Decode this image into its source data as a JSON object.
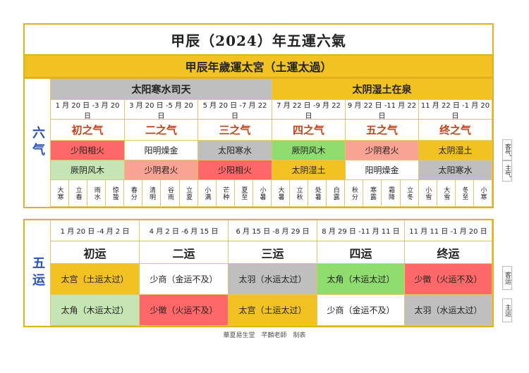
{
  "title": "甲辰（2024）年五運六氣",
  "year_header": "甲辰年歲運太宮（土運太過）",
  "liuqi": {
    "side_label": "六气",
    "si_tian": "太阳寒水司天",
    "zai_quan": "太阴湿土在泉",
    "stages": [
      {
        "dates": "1 月 20 日 -3 月 20 日",
        "name": "初之气",
        "guest": "少阳相火",
        "host": "厥阴风木"
      },
      {
        "dates": "3 月 20 日 -5 月 20 日",
        "name": "二之气",
        "guest": "阳明燥金",
        "host": "少阴君火"
      },
      {
        "dates": "5 月 20 日 -7 月 22 日",
        "name": "三之气",
        "guest": "太阳寒水",
        "host": "少阳相火"
      },
      {
        "dates": "7 月 22 日 -9 月 22 日",
        "name": "四之气",
        "guest": "厥阴风木",
        "host": "太阴湿土"
      },
      {
        "dates": "9 月 22 日 -11 月 22 日",
        "name": "五之气",
        "guest": "少阴君火",
        "host": "阳明燥金"
      },
      {
        "dates": "11 月 22 日 -1 月 20 日",
        "name": "终之气",
        "guest": "太阴湿土",
        "host": "太阳寒水"
      }
    ],
    "solar_terms": [
      "大寒",
      "立春",
      "雨水",
      "惊蛰",
      "春分",
      "清明",
      "谷雨",
      "立夏",
      "小满",
      "芒种",
      "夏至",
      "小暑",
      "大暑",
      "立秋",
      "处暑",
      "白露",
      "秋分",
      "寒露",
      "霜降",
      "立冬",
      "小雪",
      "大雪",
      "冬至",
      "小寒"
    ],
    "tags": [
      "客气",
      "主气"
    ]
  },
  "wuyun": {
    "side_label": "五运",
    "stages": [
      {
        "dates": "1 月 20 日 -4 月 2 日",
        "name": "初运",
        "guest": "太宫（土运太过）",
        "host": "太角（木运太过）"
      },
      {
        "dates": "4 月 2 日 -6 月 15 日",
        "name": "二运",
        "guest": "少商（金运不及）",
        "host": "少徵（火运不及）"
      },
      {
        "dates": "6 月 15 日 -8 月 29 日",
        "name": "三运",
        "guest": "太羽（水运太过）",
        "host": "太宫（土运太过）"
      },
      {
        "dates": "8 月 29 日 -11 月 11 日",
        "name": "四运",
        "guest": "太角（木运太过）",
        "host": "少商（金运不及）"
      },
      {
        "dates": "11 月 11 日 -1 月 20 日",
        "name": "终运",
        "guest": "少徵（火运不及）",
        "host": "太羽（水运太过）"
      }
    ],
    "tags": [
      "客运",
      "主运"
    ]
  },
  "footer": "華夏易生堂　芊麟老師　制表",
  "colors": {
    "frame": "#e2b21e",
    "gold": "#f2c222",
    "grey": "#bfbfbf",
    "green": "#8fdc6f",
    "light_green": "#c6e5b4",
    "red": "#ff6868",
    "salmon": "#f9a395",
    "side_text": "#2a52b8",
    "stage_text": "#c2421b"
  }
}
